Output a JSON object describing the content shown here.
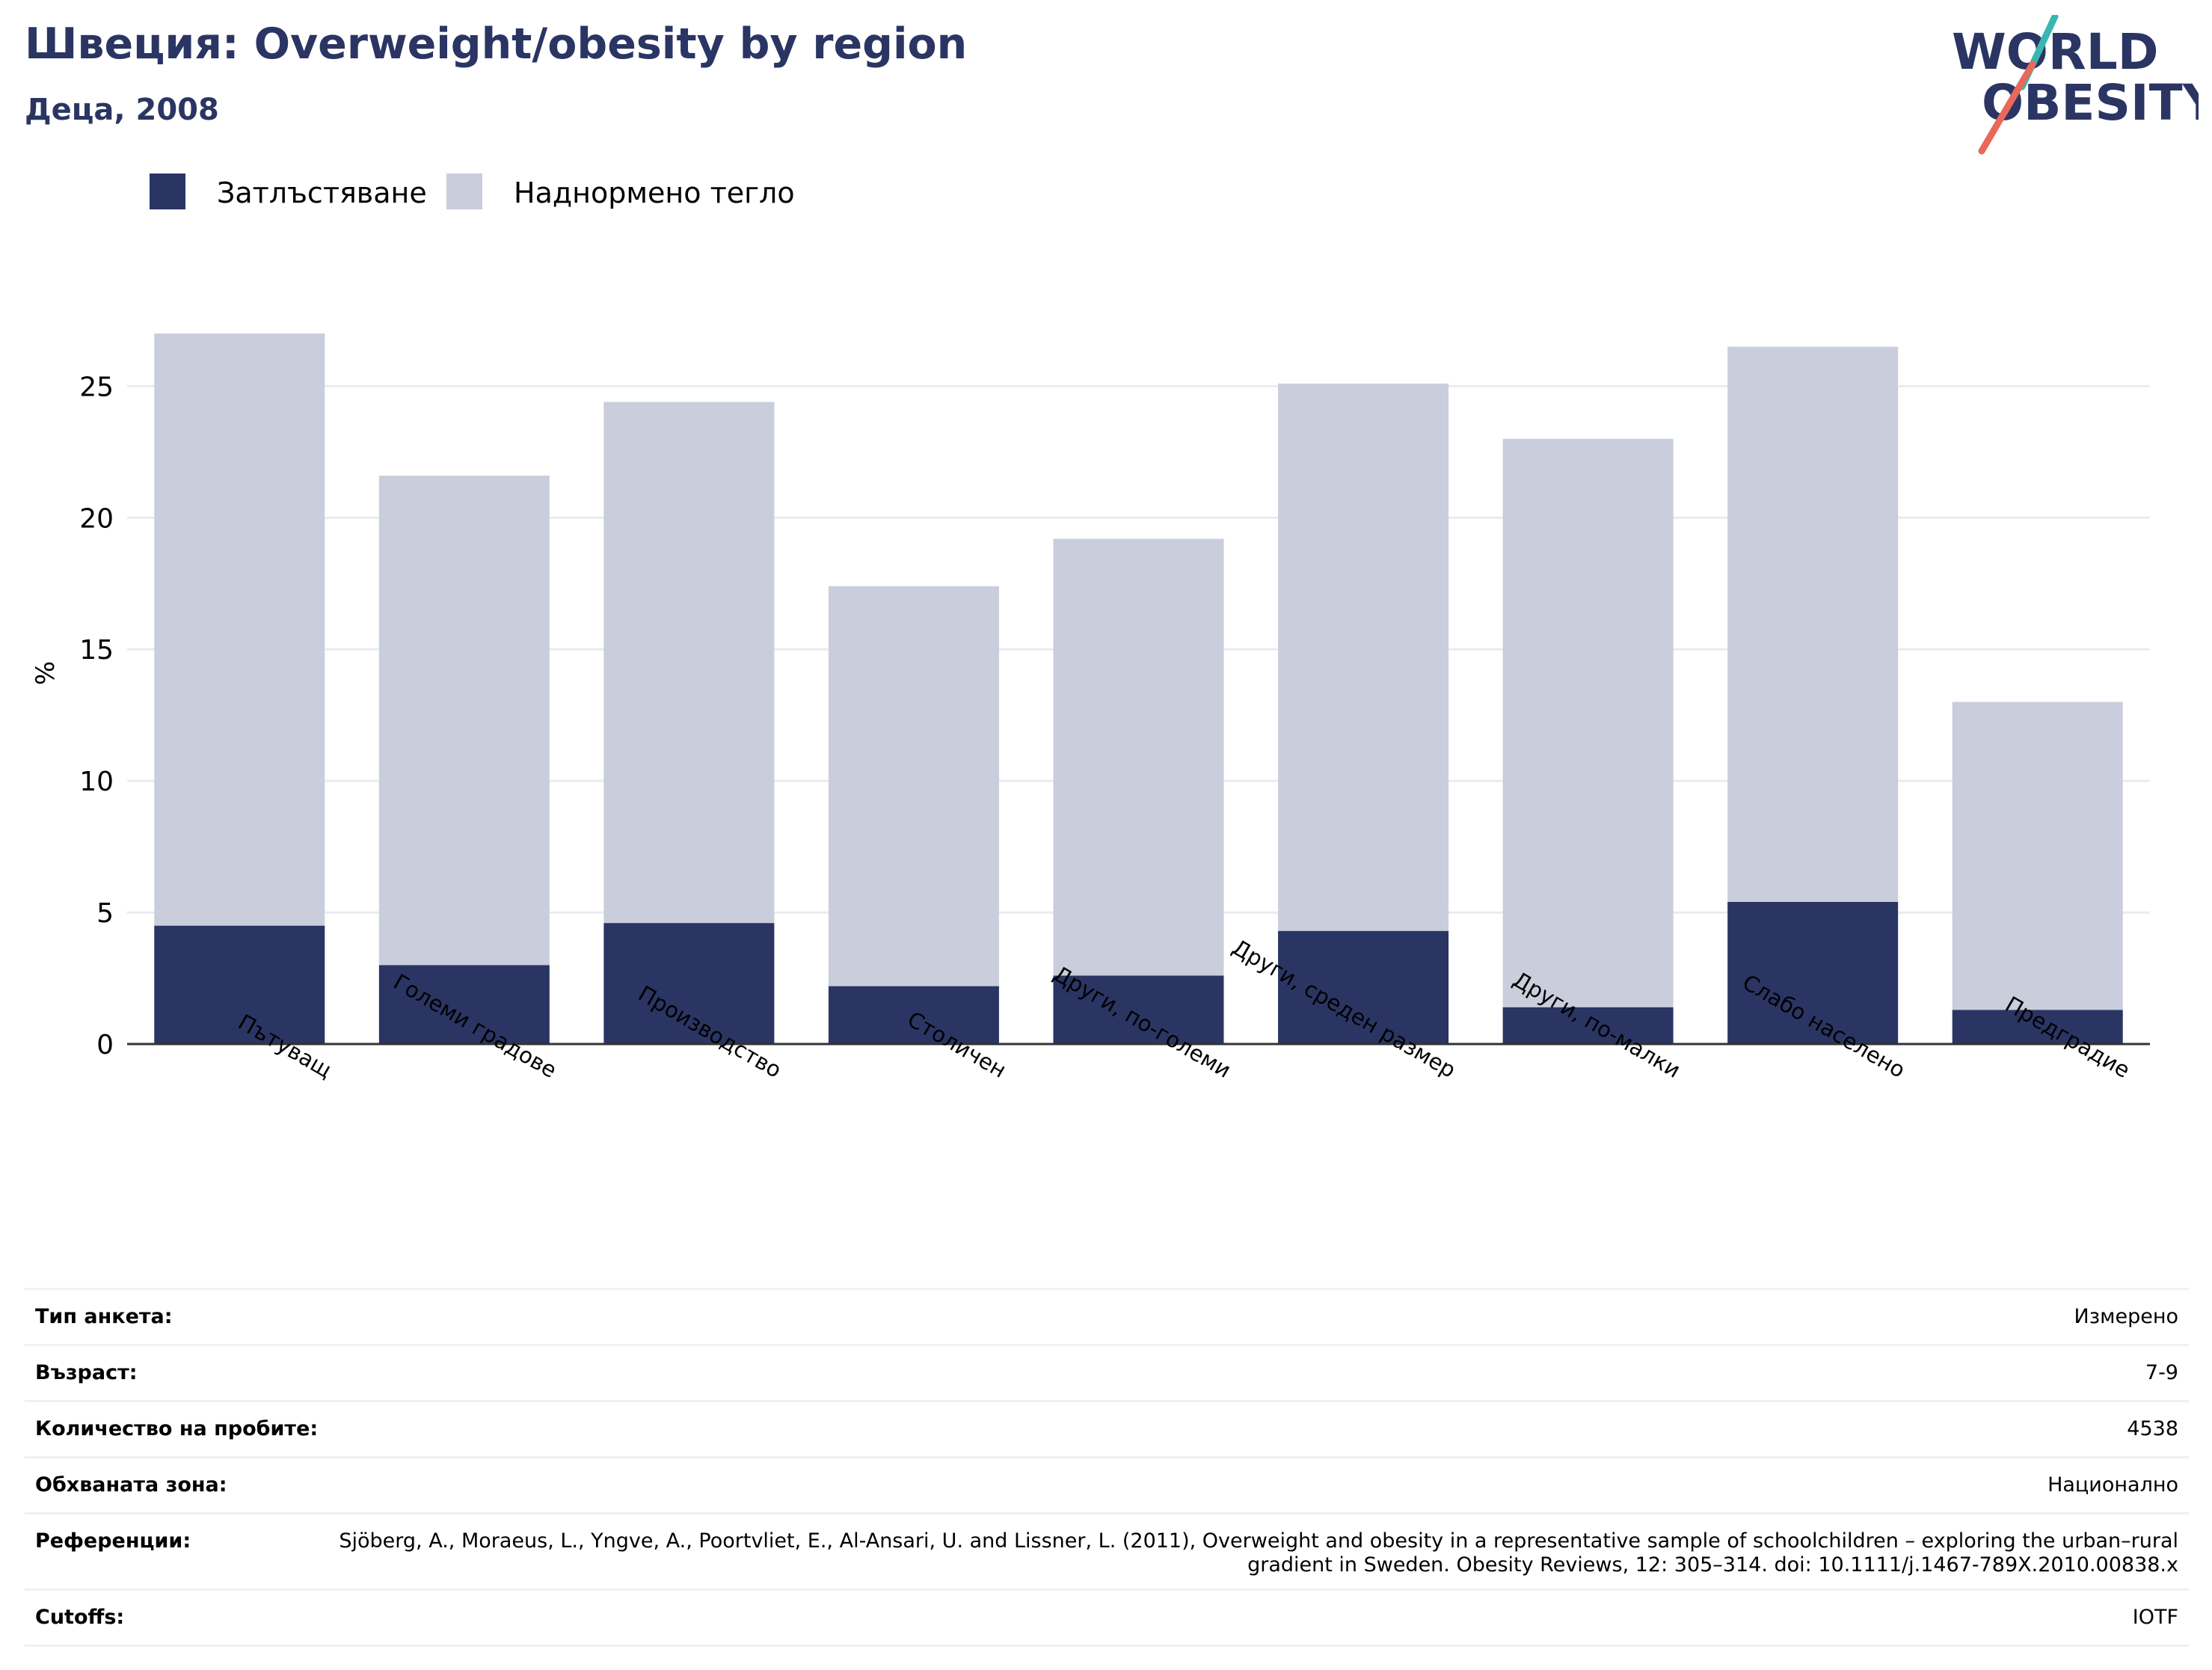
{
  "header": {
    "title": "Швеция: Overweight/obesity by region",
    "subtitle": "Деца, 2008"
  },
  "logo": {
    "line1": "WORLD",
    "line2": "OBESITY"
  },
  "colors": {
    "title": "#2a3563",
    "obesity": "#2a3563",
    "overweight": "#cacddb",
    "grid": "#e9ebf0",
    "logo_teal": "#3bb5b0",
    "logo_coral": "#e8695a"
  },
  "chart_data": {
    "type": "bar",
    "stacked": true,
    "categories": [
      "Пътуващ",
      "Големи градове",
      "Производство",
      "Столичен",
      "Други, по-големи",
      "Други, среден размер",
      "Други, по-малки",
      "Слабо населено",
      "Предградие"
    ],
    "series": [
      {
        "name": "Затлъстяване",
        "values": [
          4.5,
          3.0,
          4.6,
          2.2,
          2.6,
          4.3,
          1.4,
          5.4,
          1.3
        ]
      },
      {
        "name": "Наднормено тегло",
        "values": [
          22.5,
          18.6,
          19.8,
          15.2,
          16.6,
          20.8,
          21.6,
          21.1,
          11.7
        ]
      }
    ],
    "totals": [
      27.0,
      21.6,
      24.4,
      17.4,
      19.2,
      25.1,
      23.0,
      26.5,
      13.0
    ],
    "ylabel": "%",
    "ylim": [
      0,
      27
    ],
    "yticks": [
      0,
      5,
      10,
      15,
      20,
      25
    ],
    "grid": true,
    "legend_position": "top-left"
  },
  "details": [
    {
      "label": "Тип анкета:",
      "value": "Измерено"
    },
    {
      "label": "Възраст:",
      "value": "7-9"
    },
    {
      "label": "Количество на пробите:",
      "value": "4538"
    },
    {
      "label": "Обхваната зона:",
      "value": "Национално"
    },
    {
      "label": "Референции:",
      "value": "Sjöberg, A., Moraeus, L., Yngve, A., Poortvliet, E., Al-Ansari, U. and Lissner, L. (2011), Overweight and obesity in a representative sample of schoolchildren – exploring the urban–rural gradient in Sweden. Obesity Reviews, 12: 305–314. doi: 10.1111/j.1467-789X.2010.00838.x"
    },
    {
      "label": "Cutoffs:",
      "value": "IOTF"
    }
  ]
}
